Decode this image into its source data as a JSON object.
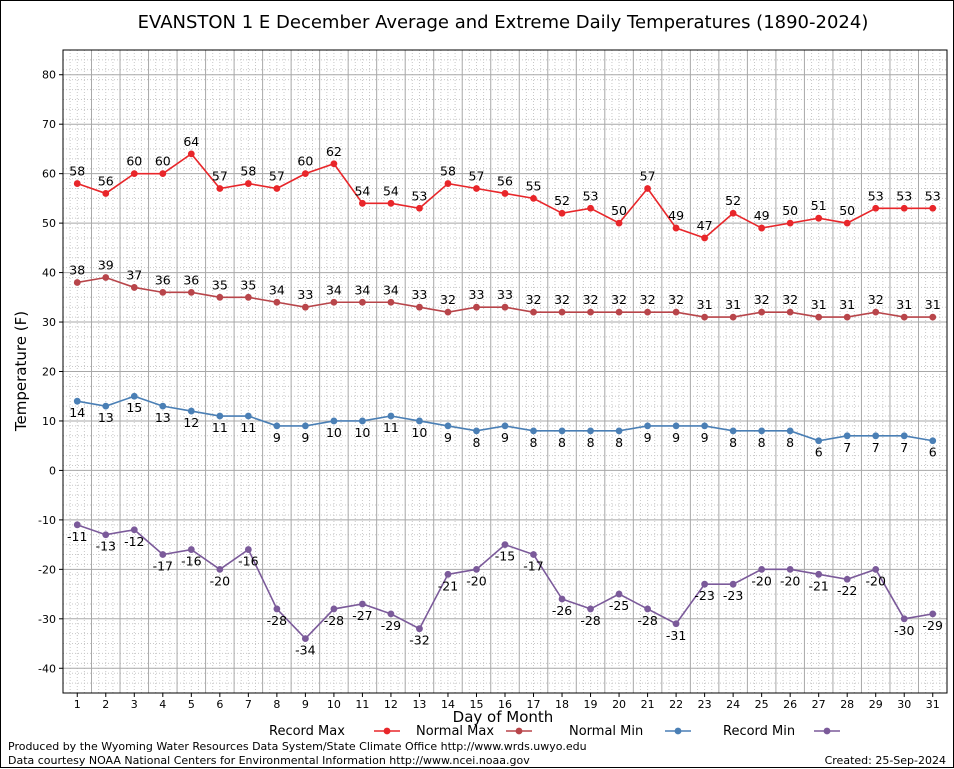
{
  "chart_data": {
    "type": "line",
    "title": "EVANSTON 1 E December Average and Extreme Daily Temperatures (1890-2024)",
    "xlabel": "Day of Month",
    "ylabel": "Temperature (F)",
    "ylim": [
      -45,
      85
    ],
    "yticks": [
      -40,
      -30,
      -20,
      -10,
      0,
      10,
      20,
      30,
      40,
      50,
      60,
      70,
      80
    ],
    "xlim": [
      0.5,
      31.5
    ],
    "x": [
      1,
      2,
      3,
      4,
      5,
      6,
      7,
      8,
      9,
      10,
      11,
      12,
      13,
      14,
      15,
      16,
      17,
      18,
      19,
      20,
      21,
      22,
      23,
      24,
      25,
      26,
      27,
      28,
      29,
      30,
      31
    ],
    "grid": true,
    "legend_position": "bottom",
    "series": [
      {
        "name": "Record Max",
        "color": "#e8262a",
        "label_pos": "above",
        "values": [
          58,
          56,
          60,
          60,
          64,
          57,
          58,
          57,
          60,
          62,
          54,
          54,
          53,
          58,
          57,
          56,
          55,
          52,
          53,
          50,
          57,
          49,
          47,
          52,
          49,
          50,
          51,
          50,
          53,
          53,
          53
        ]
      },
      {
        "name": "Normal Max",
        "color": "#b8454a",
        "label_pos": "above",
        "values": [
          38,
          39,
          37,
          36,
          36,
          35,
          35,
          34,
          33,
          34,
          34,
          34,
          33,
          32,
          33,
          33,
          32,
          32,
          32,
          32,
          32,
          32,
          31,
          31,
          32,
          32,
          31,
          31,
          32,
          31,
          31
        ]
      },
      {
        "name": "Normal Min",
        "color": "#4a7fb5",
        "label_pos": "below",
        "values": [
          14,
          13,
          15,
          13,
          12,
          11,
          11,
          9,
          9,
          10,
          10,
          11,
          10,
          9,
          8,
          9,
          8,
          8,
          8,
          8,
          9,
          9,
          9,
          8,
          8,
          8,
          6,
          7,
          7,
          7,
          6
        ]
      },
      {
        "name": "Record Min",
        "color": "#7b5a9a",
        "label_pos": "below",
        "values": [
          -11,
          -13,
          -12,
          -17,
          -16,
          -20,
          -16,
          -28,
          -34,
          -28,
          -27,
          -29,
          -32,
          -21,
          -20,
          -15,
          -17,
          -26,
          -28,
          -25,
          -28,
          -31,
          -23,
          -23,
          -20,
          -20,
          -21,
          -22,
          -20,
          -30,
          -29
        ]
      }
    ]
  },
  "footer": {
    "produced_by": "Produced by the Wyoming Water Resources Data System/State Climate Office http://www.wrds.uwyo.edu",
    "courtesy": "Data courtesy NOAA National Centers for Environmental Information http://www.ncei.noaa.gov",
    "created": "Created:  25-Sep-2024"
  }
}
